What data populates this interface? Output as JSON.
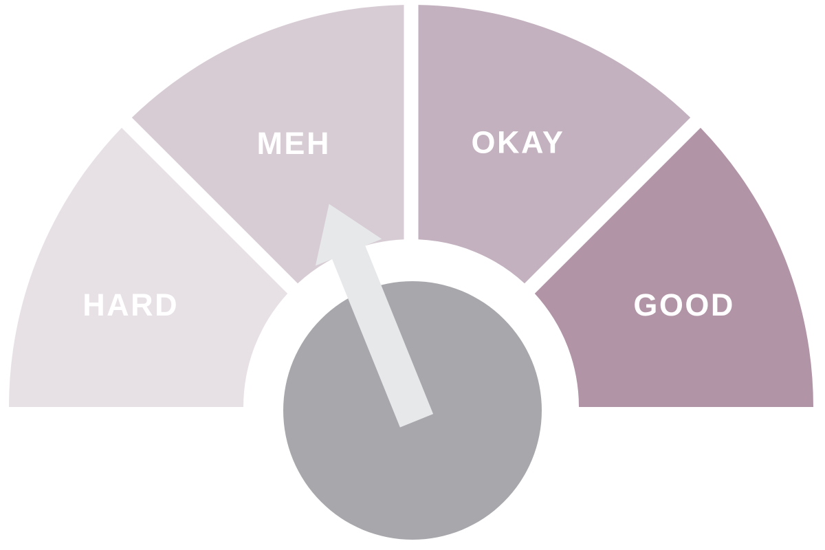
{
  "chart_data": {
    "type": "pie",
    "variant": "gauge",
    "title": "",
    "background_color": "#ffffff",
    "arc_span_deg": [
      0,
      180
    ],
    "categories": [
      "HARD",
      "MEH",
      "OKAY",
      "GOOD"
    ],
    "values": [
      25,
      25,
      25,
      25
    ],
    "segments": [
      {
        "label": "HARD",
        "color": "#e7e1e6",
        "start_angle_deg": 135,
        "end_angle_deg": 180,
        "label_angle_deg": 160,
        "label_radius": 434
      },
      {
        "label": "MEH",
        "color": "#d7ccd4",
        "start_angle_deg": 90,
        "end_angle_deg": 135,
        "label_angle_deg": 114,
        "label_radius": 420
      },
      {
        "label": "OKAY",
        "color": "#c3b1bf",
        "start_angle_deg": 45,
        "end_angle_deg": 90,
        "label_angle_deg": 68,
        "label_radius": 415
      },
      {
        "label": "GOOD",
        "color": "#b294a7",
        "start_angle_deg": 0,
        "end_angle_deg": 45,
        "label_angle_deg": 20.5,
        "label_radius": 424
      }
    ],
    "label_color": "#ffffff",
    "needle": {
      "points_to": "MEH",
      "angle_deg": 112,
      "color": "#e6e8ea"
    },
    "hub_color": "#a8a7ac",
    "legend": "none",
    "gridlines": false
  }
}
